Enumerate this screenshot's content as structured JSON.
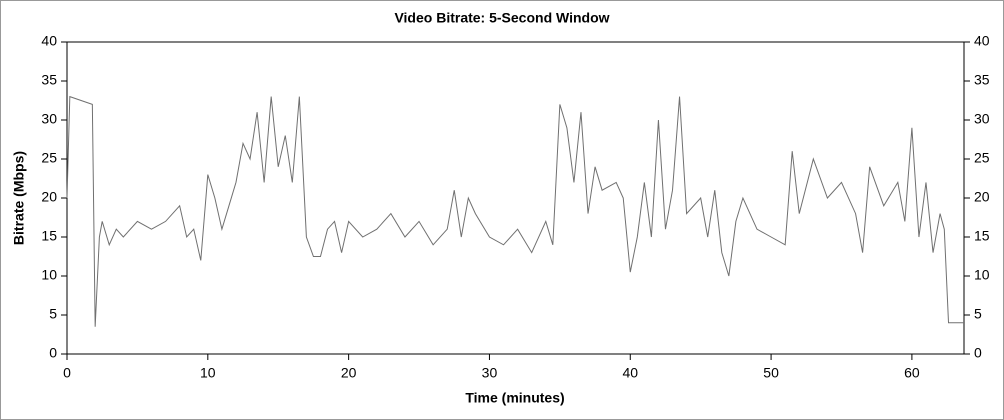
{
  "chart_data": {
    "type": "line",
    "title": "Video Bitrate: 5-Second Window",
    "x_label": "Time (minutes)",
    "y_label": "Bitrate (Mbps)",
    "xlim": [
      0,
      63.7
    ],
    "xticks": [
      0,
      10,
      20,
      30,
      40,
      50,
      60
    ],
    "ylim": [
      0,
      40
    ],
    "yticks": [
      0,
      5,
      10,
      15,
      20,
      25,
      30,
      35,
      40
    ],
    "series": [
      {
        "name": "Bitrate",
        "color": "#707070",
        "x": [
          0,
          0.2,
          1.8,
          2.0,
          2.3,
          2.5,
          3,
          3.5,
          4,
          5,
          6,
          7,
          8,
          8.5,
          9,
          9.5,
          10,
          10.5,
          11,
          11.5,
          12,
          12.5,
          13,
          13.5,
          14,
          14.5,
          15,
          15.5,
          16,
          16.5,
          17,
          17.5,
          18,
          18.5,
          19,
          19.5,
          20,
          21,
          22,
          23,
          24,
          25,
          26,
          27,
          27.5,
          28,
          28.5,
          29,
          30,
          31,
          32,
          33,
          34,
          34.5,
          35,
          35.5,
          36,
          36.5,
          37,
          37.5,
          38,
          39,
          39.5,
          40,
          40.5,
          41,
          41.5,
          42,
          42.5,
          43,
          43.5,
          44,
          45,
          45.5,
          46,
          46.5,
          47,
          47.5,
          48,
          49,
          50,
          51,
          51.5,
          52,
          53,
          54,
          55,
          56,
          56.5,
          57,
          58,
          59,
          59.5,
          60,
          60.5,
          61,
          61.5,
          62,
          62.3,
          62.6,
          63,
          63.7
        ],
        "values": [
          20,
          33,
          32,
          3.5,
          15,
          17,
          14,
          16,
          15,
          17,
          16,
          17,
          19,
          15,
          16,
          12,
          23,
          20,
          16,
          19,
          22,
          27,
          25,
          31,
          22,
          33,
          24,
          28,
          22,
          33,
          15,
          12.5,
          12.5,
          16,
          17,
          13,
          17,
          15,
          16,
          18,
          15,
          17,
          14,
          16,
          21,
          15,
          20,
          18,
          15,
          14,
          16,
          13,
          17,
          14,
          32,
          29,
          22,
          31,
          18,
          24,
          21,
          22,
          20,
          10.5,
          15,
          22,
          15,
          30,
          16,
          21,
          33,
          18,
          20,
          15,
          21,
          13,
          10,
          17,
          20,
          16,
          15,
          14,
          26,
          18,
          25,
          20,
          22,
          18,
          13,
          24,
          19,
          22,
          17,
          29,
          15,
          22,
          13,
          18,
          16,
          4,
          4,
          4
        ]
      }
    ]
  }
}
